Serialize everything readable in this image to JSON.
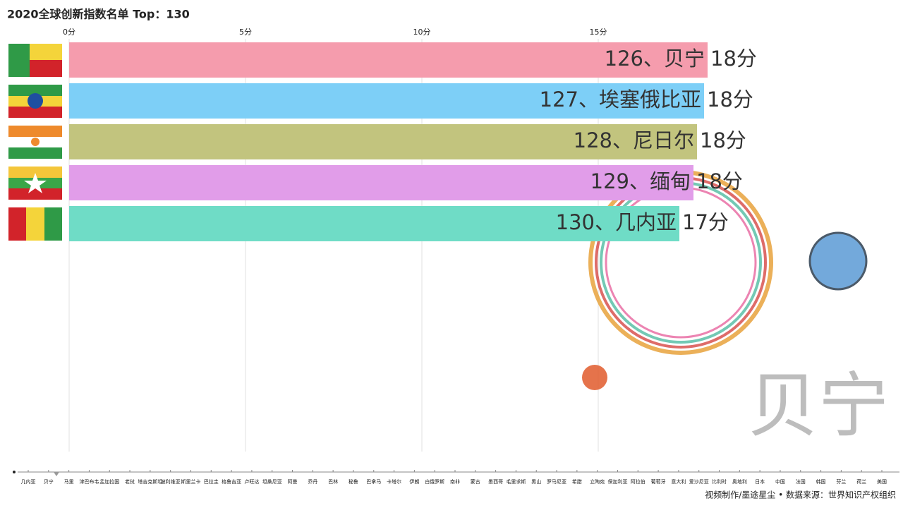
{
  "chart_data": {
    "type": "bar",
    "orientation": "horizontal",
    "title": "2020全球创新指数名单 Top：130",
    "categories": [
      "126、贝宁",
      "127、埃塞俄比亚",
      "128、尼日尔",
      "129、缅甸",
      "130、几内亚"
    ],
    "values": [
      18.1,
      18.0,
      17.8,
      17.7,
      17.3
    ],
    "value_labels": [
      "18分",
      "18分",
      "18分",
      "18分",
      "17分"
    ],
    "colors": [
      "#f59cad",
      "#7dcff7",
      "#c2c47e",
      "#e19de9",
      "#6fdcc6"
    ],
    "xlim": [
      0,
      23.6
    ],
    "xticks": [
      {
        "value": 0,
        "label": "0分"
      },
      {
        "value": 5,
        "label": "5分"
      },
      {
        "value": 10,
        "label": "10分"
      },
      {
        "value": 15,
        "label": "15分"
      }
    ],
    "grid": true,
    "watermark": "贝宁",
    "timeline": [
      "几内亚",
      "贝宁",
      "马里",
      "津巴布韦",
      "孟加拉国",
      "老挝",
      "塔吉克斯坦",
      "玻利维亚",
      "斯里兰卡",
      "巴拉圭",
      "格鲁吉亚",
      "卢旺达",
      "坦桑尼亚",
      "阿曼",
      "乔丹",
      "巴林",
      "秘鲁",
      "巴拿马",
      "卡塔尔",
      "伊朗",
      "白俄罗斯",
      "南非",
      "蒙古",
      "墨西哥",
      "毛里求斯",
      "黑山",
      "罗马尼亚",
      "希腊",
      "立陶宛",
      "保加利亚",
      "阿拉伯",
      "葡萄牙",
      "意大利",
      "爱沙尼亚",
      "比利时",
      "奥地利",
      "日本",
      "中国",
      "法国",
      "韩国",
      "芬兰",
      "荷兰",
      "美国"
    ],
    "footer": "视频制作/墨途星尘 • 数据来源：世界知识产权组织"
  }
}
